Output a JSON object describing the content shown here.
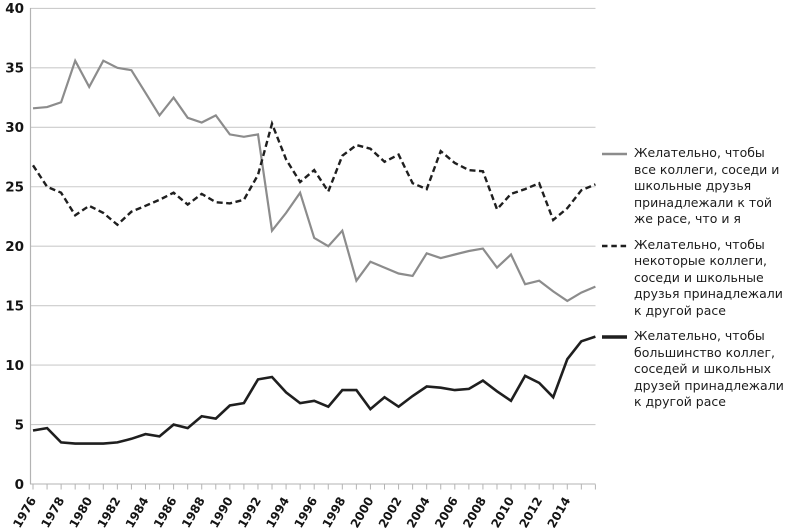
{
  "chart_data": {
    "type": "line",
    "x": [
      1976,
      1977,
      1978,
      1979,
      1980,
      1981,
      1982,
      1983,
      1984,
      1985,
      1986,
      1987,
      1988,
      1989,
      1990,
      1991,
      1992,
      1993,
      1994,
      1995,
      1996,
      1997,
      1998,
      1999,
      2000,
      2001,
      2002,
      2003,
      2004,
      2005,
      2006,
      2007,
      2008,
      2009,
      2010,
      2011,
      2012,
      2013,
      2014,
      2015,
      2016
    ],
    "series": [
      {
        "name": "all-same-race",
        "legend": "Желательно, чтобы все коллеги, соседи и школьные друзья принадлежали к той же расе, что и я",
        "line_style": "solid",
        "color": "#8c8c8c",
        "width": 2.2,
        "values": [
          31.6,
          31.7,
          32.1,
          35.6,
          33.4,
          35.6,
          35.0,
          34.8,
          32.9,
          31.0,
          32.5,
          30.8,
          30.4,
          31.0,
          29.4,
          29.2,
          29.4,
          21.3,
          22.8,
          24.5,
          20.7,
          20.0,
          21.3,
          17.1,
          18.7,
          18.2,
          17.7,
          17.5,
          19.4,
          19.0,
          19.3,
          19.6,
          19.8,
          18.2,
          19.3,
          16.8,
          17.1,
          16.2,
          15.4,
          16.1,
          16.6
        ]
      },
      {
        "name": "some-different-race",
        "legend": "Желательно, чтобы некоторые коллеги, соседи и школьные друзья принадлежали к другой расе",
        "line_style": "dashed",
        "color": "#1f1f1f",
        "width": 2.4,
        "dash": "6 3.5",
        "values": [
          26.8,
          25.0,
          24.5,
          22.6,
          23.4,
          22.8,
          21.8,
          22.9,
          23.4,
          23.9,
          24.5,
          23.5,
          24.4,
          23.7,
          23.6,
          23.9,
          26.0,
          30.3,
          27.3,
          25.4,
          26.4,
          24.6,
          27.6,
          28.5,
          28.2,
          27.1,
          27.7,
          25.3,
          24.8,
          28.0,
          27.0,
          26.4,
          26.3,
          23.1,
          24.4,
          24.8,
          25.3,
          22.2,
          23.2,
          24.7,
          25.2
        ]
      },
      {
        "name": "most-different-race",
        "legend": "Желательно, чтобы большинство коллег, соседей и школьных друзей принадлежали к другой расе",
        "line_style": "solid",
        "color": "#1f1f1f",
        "width": 2.6,
        "values": [
          4.5,
          4.7,
          3.5,
          3.4,
          3.4,
          3.4,
          3.5,
          3.8,
          4.2,
          4.0,
          5.0,
          4.7,
          5.7,
          5.5,
          6.6,
          6.8,
          8.8,
          9.0,
          7.7,
          6.8,
          7.0,
          6.5,
          7.9,
          7.9,
          6.3,
          7.3,
          6.5,
          7.4,
          8.2,
          8.1,
          7.9,
          8.0,
          8.7,
          7.8,
          7.0,
          9.1,
          8.5,
          7.3,
          10.5,
          12.0,
          12.4
        ]
      }
    ],
    "title": "",
    "xlabel": "",
    "ylabel": "",
    "ylim": [
      0,
      40
    ],
    "yticks": [
      "0",
      "5",
      "10",
      "15",
      "20",
      "25",
      "30",
      "35",
      "40"
    ],
    "xtick_labels": [
      "1976",
      "1978",
      "1980",
      "1982",
      "1984",
      "1986",
      "1988",
      "1990",
      "1992",
      "1994",
      "1996",
      "1998",
      "2000",
      "2002",
      "2004",
      "2006",
      "2008",
      "2010",
      "2012",
      "2014"
    ],
    "grid": "horizontal",
    "legend_position": "right"
  },
  "colors": {
    "gridline": "#cccccc",
    "axis": "#b3b3b3",
    "tick": "#b3b3b3",
    "label_text": "#141414",
    "legend_text": "#1c1c1c",
    "background": "#ffffff"
  }
}
